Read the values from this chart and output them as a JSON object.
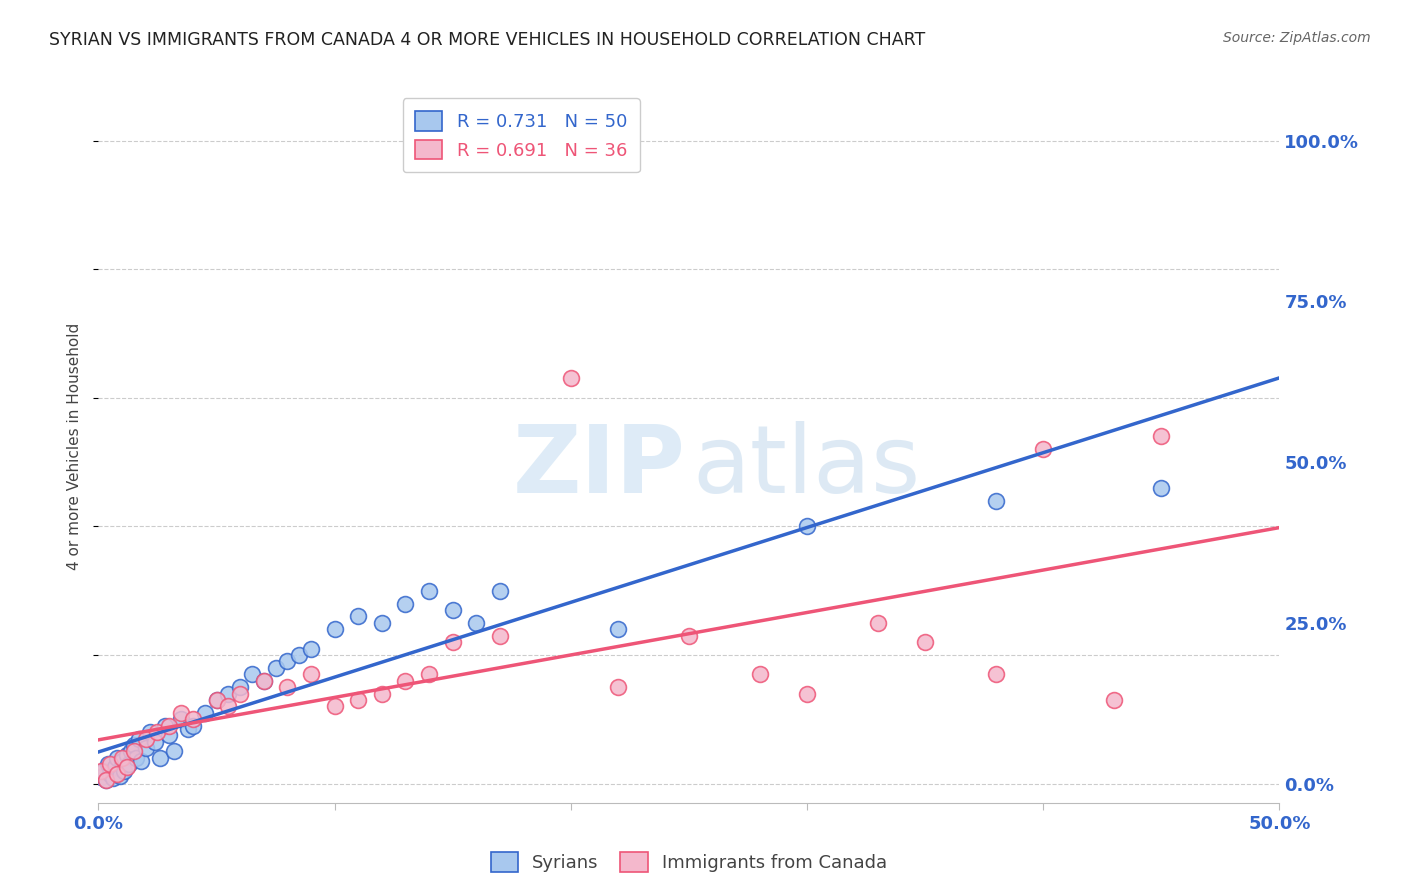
{
  "title": "SYRIAN VS IMMIGRANTS FROM CANADA 4 OR MORE VEHICLES IN HOUSEHOLD CORRELATION CHART",
  "source": "Source: ZipAtlas.com",
  "ylabel": "4 or more Vehicles in Household",
  "syrians_color": "#A8C8EE",
  "canada_color": "#F4B8CC",
  "syrians_line_color": "#3366CC",
  "canada_line_color": "#EE5577",
  "syrians_R": 0.731,
  "syrians_N": 50,
  "canada_R": 0.691,
  "canada_N": 36,
  "xmin": 0.0,
  "xmax": 50.0,
  "ymin": -3.0,
  "ymax": 108.0,
  "syrians_x": [
    0.1,
    0.2,
    0.3,
    0.4,
    0.5,
    0.6,
    0.7,
    0.8,
    0.9,
    1.0,
    1.1,
    1.2,
    1.3,
    1.4,
    1.5,
    1.6,
    1.7,
    1.8,
    2.0,
    2.2,
    2.4,
    2.6,
    2.8,
    3.0,
    3.2,
    3.5,
    3.8,
    4.0,
    4.5,
    5.0,
    5.5,
    6.0,
    6.5,
    7.0,
    7.5,
    8.0,
    8.5,
    9.0,
    10.0,
    11.0,
    12.0,
    13.0,
    14.0,
    15.0,
    16.0,
    17.0,
    22.0,
    30.0,
    38.0,
    45.0
  ],
  "syrians_y": [
    1.0,
    2.0,
    0.5,
    3.0,
    1.5,
    0.8,
    2.5,
    4.0,
    1.2,
    3.5,
    2.0,
    4.5,
    3.0,
    5.0,
    6.0,
    4.0,
    7.0,
    3.5,
    5.5,
    8.0,
    6.5,
    4.0,
    9.0,
    7.5,
    5.0,
    10.0,
    8.5,
    9.0,
    11.0,
    13.0,
    14.0,
    15.0,
    17.0,
    16.0,
    18.0,
    19.0,
    20.0,
    21.0,
    24.0,
    26.0,
    25.0,
    28.0,
    30.0,
    27.0,
    25.0,
    30.0,
    24.0,
    40.0,
    44.0,
    46.0
  ],
  "canada_x": [
    0.1,
    0.3,
    0.5,
    0.8,
    1.0,
    1.2,
    1.5,
    2.0,
    2.5,
    3.0,
    3.5,
    4.0,
    5.0,
    5.5,
    6.0,
    7.0,
    8.0,
    9.0,
    10.0,
    11.0,
    12.0,
    13.0,
    14.0,
    15.0,
    17.0,
    20.0,
    22.0,
    25.0,
    28.0,
    30.0,
    33.0,
    35.0,
    38.0,
    40.0,
    43.0,
    45.0
  ],
  "canada_y": [
    2.0,
    0.5,
    3.0,
    1.5,
    4.0,
    2.5,
    5.0,
    7.0,
    8.0,
    9.0,
    11.0,
    10.0,
    13.0,
    12.0,
    14.0,
    16.0,
    15.0,
    17.0,
    12.0,
    13.0,
    14.0,
    16.0,
    17.0,
    22.0,
    23.0,
    63.0,
    15.0,
    23.0,
    17.0,
    14.0,
    25.0,
    22.0,
    17.0,
    52.0,
    13.0,
    54.0
  ]
}
